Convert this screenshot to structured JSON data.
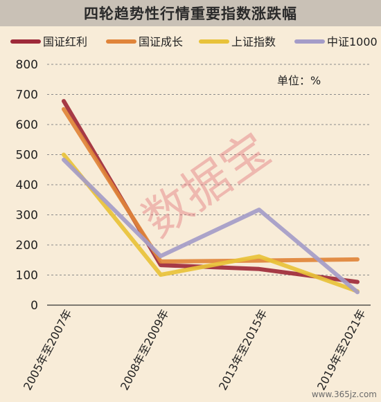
{
  "title": "四轮趋势性行情重要指数涨跌幅",
  "unit_label": "单位：%",
  "watermark": "数据宝",
  "site_tag": "www.365jz.com",
  "chart_data": {
    "type": "line",
    "title": "四轮趋势性行情重要指数涨跌幅",
    "categories": [
      "2005年至2007年",
      "2008年至2009年",
      "2013年至2015年",
      "2019年至2021年"
    ],
    "ylim": [
      0,
      800
    ],
    "yticks": [
      0,
      100,
      200,
      300,
      400,
      500,
      600,
      700,
      800
    ],
    "grid": true,
    "legend_position": "top",
    "series": [
      {
        "name": "国证红利",
        "color": "#9e2a3a",
        "values": [
          678,
          133,
          120,
          77
        ]
      },
      {
        "name": "国证成长",
        "color": "#e0843a",
        "values": [
          651,
          145,
          148,
          152
        ]
      },
      {
        "name": "上证指数",
        "color": "#e8c23a",
        "values": [
          500,
          101,
          162,
          46
        ]
      },
      {
        "name": "中证1000",
        "color": "#a49cc8",
        "values": [
          483,
          163,
          317,
          43
        ]
      }
    ]
  }
}
